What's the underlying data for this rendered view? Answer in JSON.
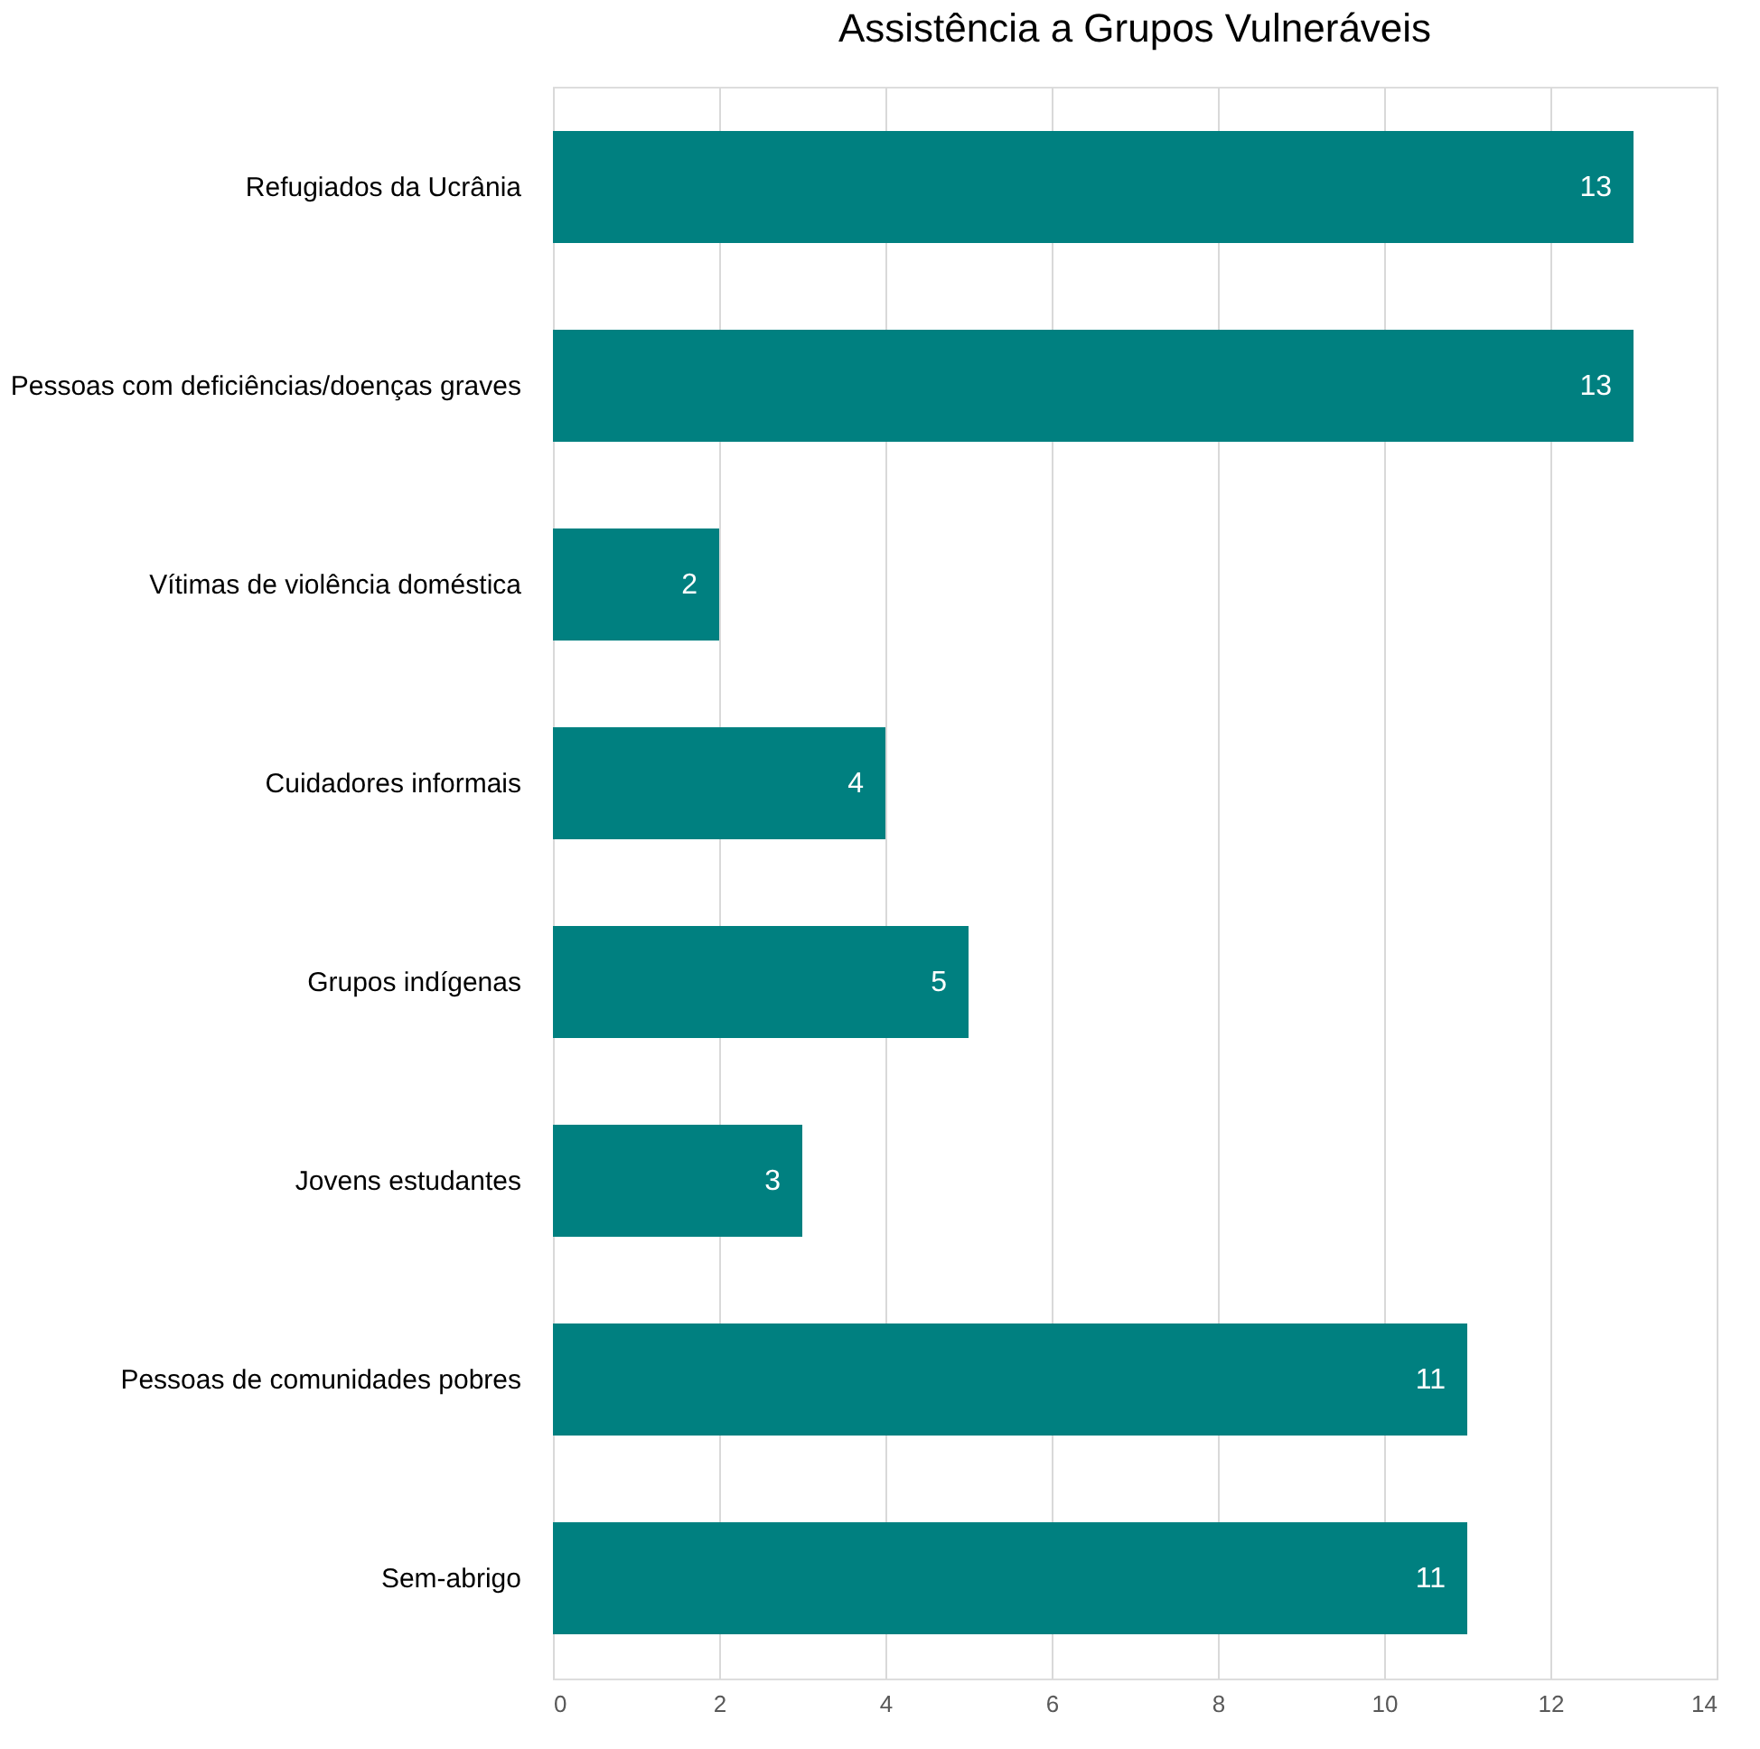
{
  "chart_data": {
    "type": "bar",
    "orientation": "horizontal",
    "title": "Assistência a Grupos Vulneráveis",
    "categories": [
      "Refugiados da Ucrânia",
      "Pessoas com deficiências/doenças graves",
      "Vítimas de violência doméstica",
      "Cuidadores informais",
      "Grupos indígenas",
      "Jovens estudantes",
      "Pessoas de comunidades pobres",
      "Sem-abrigo"
    ],
    "values": [
      13,
      13,
      2,
      4,
      5,
      3,
      11,
      11
    ],
    "color": "#008080",
    "xlim": [
      0,
      14
    ],
    "xticks": [
      0,
      2,
      4,
      6,
      8,
      10,
      12,
      14
    ],
    "grid": "x",
    "data_labels": true
  }
}
